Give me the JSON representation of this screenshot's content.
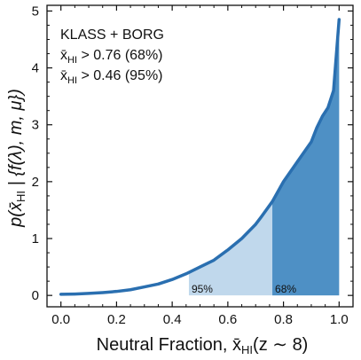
{
  "chart_data": {
    "type": "area",
    "xlabel_main": "Neutral Fraction, ",
    "xlabel_sym": "x̄",
    "xlabel_sub": "HI",
    "xlabel_tail": "(z ∼ 8)",
    "ylabel_a": "p(",
    "ylabel_sym": "x̄",
    "ylabel_sub": "HI",
    "ylabel_b": " | {f(λ), m, μ})",
    "xlim": [
      -0.05,
      1.05
    ],
    "ylim": [
      -0.2,
      5.1
    ],
    "xticks": [
      0.0,
      0.2,
      0.4,
      0.6,
      0.8,
      1.0
    ],
    "xtick_labels": [
      "0.0",
      "0.2",
      "0.4",
      "0.6",
      "0.8",
      "1.0"
    ],
    "yticks": [
      0,
      1,
      2,
      3,
      4,
      5
    ],
    "ytick_labels": [
      "0",
      "1",
      "2",
      "3",
      "4",
      "5"
    ],
    "grid": false,
    "series": [
      {
        "x": [
          0.0,
          0.05,
          0.1,
          0.15,
          0.2,
          0.25,
          0.3,
          0.35,
          0.4,
          0.45,
          0.5,
          0.55,
          0.6,
          0.65,
          0.7,
          0.72,
          0.76,
          0.8,
          0.85,
          0.9,
          0.92,
          0.94,
          0.96,
          0.98,
          1.0
        ],
        "y": [
          0.02,
          0.025,
          0.035,
          0.05,
          0.07,
          0.1,
          0.15,
          0.2,
          0.28,
          0.38,
          0.5,
          0.62,
          0.8,
          1.0,
          1.25,
          1.38,
          1.65,
          2.0,
          2.35,
          2.7,
          2.95,
          3.15,
          3.3,
          3.6,
          4.85
        ]
      }
    ],
    "intervals": [
      {
        "label": "95%",
        "from": 0.46,
        "to": 1.0,
        "color": "#c0d8ec"
      },
      {
        "label": "68%",
        "from": 0.76,
        "to": 1.0,
        "color": "#4e90c5"
      }
    ],
    "line_color": "#2a6fb0",
    "annotations": {
      "title": "KLASS + BORG",
      "line1_sym": "x̄",
      "line1_sub": "HI",
      "line1_val": " > 0.76 (68%)",
      "line2_sym": "x̄",
      "line2_sub": "HI",
      "line2_val": " > 0.46 (95%)"
    }
  }
}
